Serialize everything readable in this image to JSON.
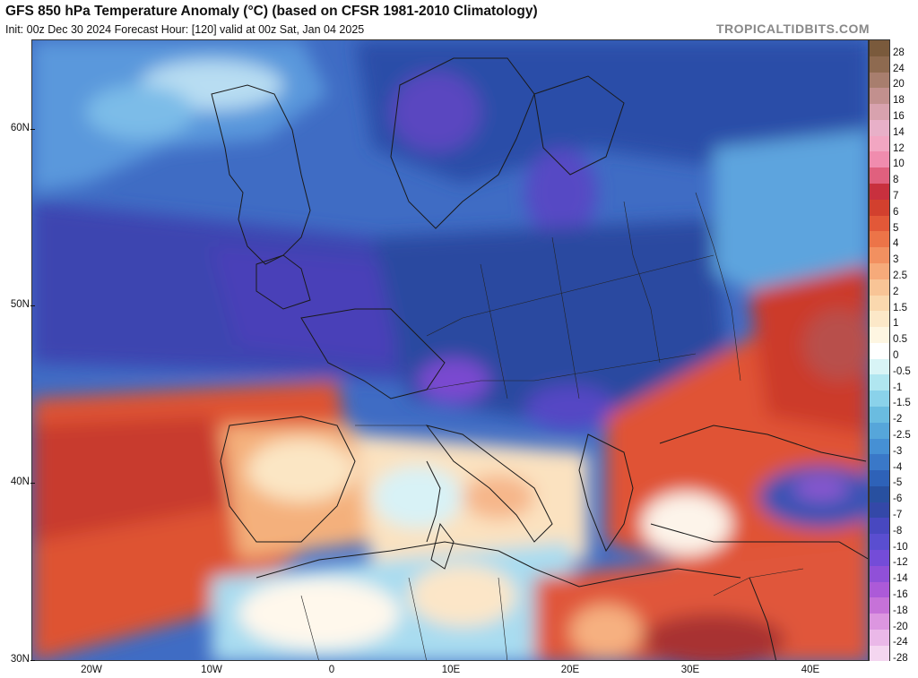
{
  "header": {
    "title": "GFS 850 hPa Temperature Anomaly (°C) (based on CFSR 1981-2010 Climatology)",
    "subtitle": "Init: 00z Dec 30 2024   Forecast Hour: [120]   valid at 00z Sat, Jan 04 2025",
    "brand": "TROPICALTIDBITS.COM"
  },
  "axes": {
    "lat_labels": [
      "60N",
      "50N",
      "40N",
      "30N"
    ],
    "lon_labels": [
      "20W",
      "10W",
      "0",
      "10E",
      "20E",
      "30E",
      "40E"
    ]
  },
  "colorbar": {
    "labels": [
      "28",
      "24",
      "20",
      "18",
      "16",
      "14",
      "12",
      "10",
      "8",
      "7",
      "6",
      "5",
      "4",
      "3",
      "2.5",
      "2",
      "1.5",
      "1",
      "0.5",
      "0",
      "-0.5",
      "-1",
      "-1.5",
      "-2",
      "-2.5",
      "-3",
      "-4",
      "-5",
      "-6",
      "-7",
      "-8",
      "-10",
      "-12",
      "-14",
      "-16",
      "-18",
      "-20",
      "-24",
      "-28"
    ],
    "colors": [
      "#7a5a3c",
      "#8e6a50",
      "#a87e6e",
      "#c2908e",
      "#d8a2ae",
      "#e8b0c8",
      "#f2a6c2",
      "#f08cae",
      "#e0607e",
      "#c8303e",
      "#d2402e",
      "#e25838",
      "#ec7448",
      "#f29060",
      "#f6aa7a",
      "#f8c496",
      "#fad8ae",
      "#fce8c8",
      "#fef6e2",
      "#ffffff",
      "#d8f4f6",
      "#b0e6f0",
      "#8ad2ea",
      "#6abce0",
      "#56a6da",
      "#4690d4",
      "#3a78c8",
      "#2e62b8",
      "#2850a0",
      "#3448a8",
      "#4848c0",
      "#5a4ed0",
      "#744cd8",
      "#9050d8",
      "#ac5ad8",
      "#c672d8",
      "#dc96e0",
      "#eab8e8",
      "#f4d6f0"
    ]
  },
  "colors": {
    "deep_blue": "#2d4fa8",
    "purple": "#4a3fb4",
    "warm_red": "#d4402a",
    "light_blue": "#6bb6e6"
  }
}
